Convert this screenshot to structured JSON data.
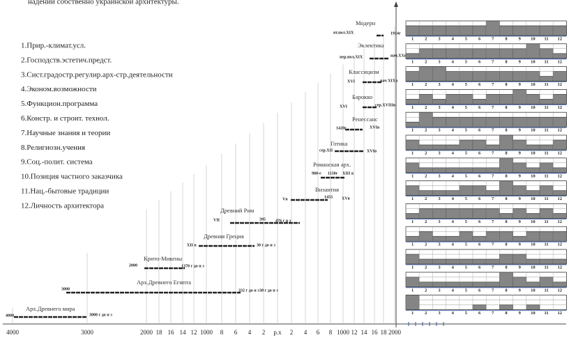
{
  "header": {
    "text": "надении собственно украинской архитектуры."
  },
  "factors": [
    "1.Прир.-климат.усл.",
    "2.Господств.эстетич.предст.",
    "3.Сист.градостр.регулир.арх-стр.деятельности",
    "4.Эконом.возможности",
    "5.Функцион.программа",
    "6.Констр. и строит. технол.",
    "7.Научные знания и теории",
    "8.Религиозн.учения",
    "9.Соц.-полит. система",
    "10.Позиция частного заказчика",
    "11.Нац.-бытовые традиции",
    "12.Личность архитектора"
  ],
  "axis": {
    "ticks": [
      "4000",
      "3000",
      "2000",
      "18",
      "16",
      "14",
      "12",
      "1000",
      "8",
      "6",
      "4",
      "2",
      "р.х",
      "2",
      "4",
      "6",
      "8",
      "1000",
      "12",
      "14",
      "16",
      "18",
      "2000"
    ]
  },
  "columns": [
    "1",
    "2",
    "3",
    "4",
    "5",
    "6",
    "7",
    "8",
    "9",
    "10",
    "11",
    "12"
  ],
  "periods": [
    {
      "name": "Модерн",
      "labels": [
        "вт.пол.XIX",
        "1914г"
      ],
      "profile": [
        2,
        2,
        2,
        2,
        2,
        2,
        3,
        2,
        2,
        2,
        2,
        2
      ]
    },
    {
      "name": "Эклектика",
      "labels": [
        "пер.пол.XIX",
        "нач.XXв"
      ],
      "profile": [
        1,
        2,
        2,
        2,
        2,
        2,
        2,
        2,
        2,
        3,
        2,
        1
      ]
    },
    {
      "name": "Классицизм",
      "labels": [
        "XVI",
        "нач XIXв"
      ],
      "profile": [
        2,
        3,
        3,
        2,
        2,
        2,
        2,
        2,
        2,
        2,
        1,
        2
      ]
    },
    {
      "name": "Барокко",
      "labels": [
        "XVI",
        "сер.XVIIIв"
      ],
      "profile": [
        1,
        2,
        1,
        2,
        2,
        1,
        2,
        2,
        3,
        2,
        1,
        2
      ]
    },
    {
      "name": "Ренессанс",
      "labels": [
        "1420г",
        "XVIв"
      ],
      "profile": [
        1,
        3,
        2,
        2,
        2,
        2,
        2,
        2,
        2,
        2,
        2,
        2
      ]
    },
    {
      "name": "Готика",
      "labels": [
        "сер.XII",
        "XVIв"
      ],
      "profile": [
        2,
        1,
        1,
        1,
        2,
        2,
        1,
        3,
        2,
        1,
        1,
        2
      ]
    },
    {
      "name": "Романская арх.",
      "labels": [
        "980-е",
        "1150г",
        "XIII в"
      ],
      "profile": [
        2,
        1,
        1,
        1,
        1,
        1,
        1,
        3,
        2,
        1,
        2,
        1
      ]
    },
    {
      "name": "Византия",
      "labels": [
        "Vв",
        "1453",
        "XVв"
      ],
      "profile": [
        2,
        1,
        1,
        1,
        2,
        2,
        1,
        3,
        2,
        1,
        2,
        1
      ]
    },
    {
      "name": "Древний Рим",
      "labels": [
        "VII",
        "395",
        "476 г н э"
      ],
      "profile": [
        1,
        2,
        2,
        2,
        2,
        2,
        2,
        1,
        2,
        1,
        2,
        1
      ]
    },
    {
      "name": "Древняя Греция",
      "labels": [
        "XII в",
        "30 г до н э"
      ],
      "profile": [
        1,
        2,
        1,
        1,
        2,
        1,
        2,
        2,
        1,
        2,
        2,
        2
      ]
    },
    {
      "name": "Крито-Микены",
      "labels": [
        "2000",
        "1370 г до н э"
      ],
      "profile": [
        2,
        1,
        1,
        1,
        1,
        1,
        1,
        2,
        2,
        1,
        1,
        1
      ]
    },
    {
      "name": "Арх.Древнего Египта",
      "labels": [
        "3000",
        "332 г до н э",
        "30 г до н э"
      ],
      "profile": [
        2,
        1,
        1,
        1,
        1,
        1,
        1,
        3,
        2,
        1,
        2,
        1
      ]
    },
    {
      "name": "Арх.Древнего мира",
      "labels": [
        "4000",
        "3000 г до н э"
      ],
      "profile": [
        3,
        0,
        0,
        0,
        0,
        1,
        0,
        1,
        0,
        1,
        0,
        0
      ]
    }
  ]
}
